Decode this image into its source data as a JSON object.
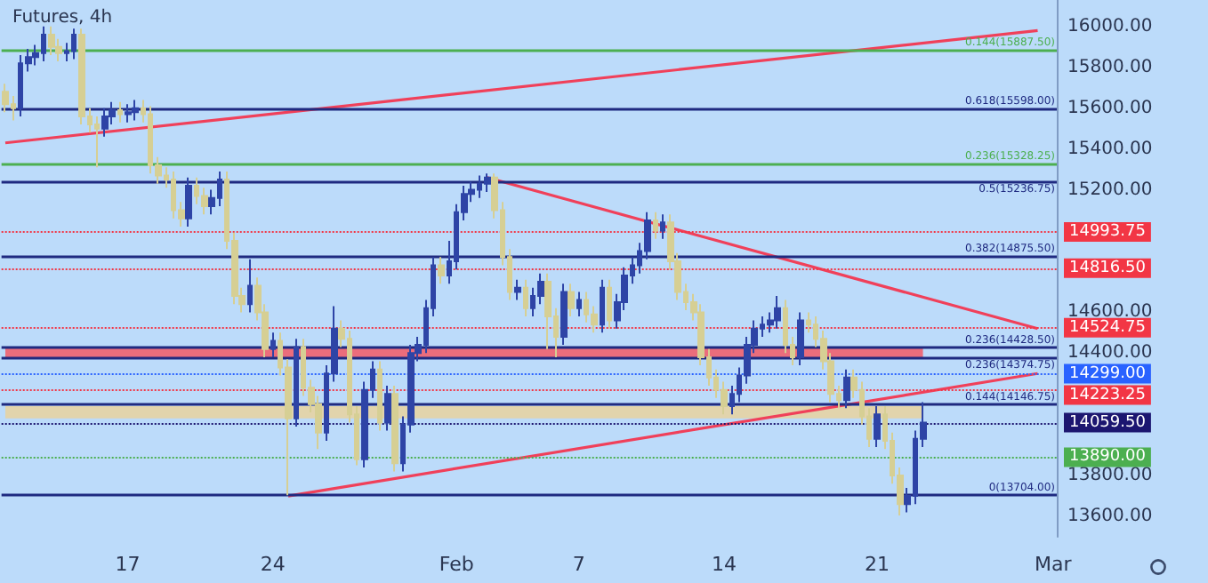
{
  "chart_data": {
    "type": "candlestick",
    "title": "Futures, 4h",
    "categories": [
      null,
      null,
      null,
      null,
      null,
      null,
      null,
      null,
      null,
      null,
      null,
      null,
      null,
      null,
      null,
      null,
      "17",
      null,
      null,
      null,
      null,
      null,
      null,
      null,
      null,
      null,
      null,
      null,
      null,
      null,
      null,
      null,
      null,
      null,
      null,
      "24",
      null,
      null,
      null,
      null,
      null,
      null,
      null,
      null,
      null,
      null,
      null,
      null,
      null,
      null,
      null,
      null,
      null,
      null,
      null,
      null,
      null,
      null,
      null,
      "Feb",
      null,
      null,
      null,
      null,
      null,
      null,
      null,
      null,
      null,
      null,
      null,
      null,
      null,
      null,
      null,
      "7",
      null,
      null,
      null,
      null,
      null,
      null,
      null,
      null,
      null,
      null,
      null,
      null,
      null,
      null,
      null,
      null,
      null,
      null,
      "14",
      null,
      null,
      null,
      null,
      null,
      null,
      null,
      null,
      null,
      null,
      null,
      null,
      null,
      null,
      null,
      null,
      null,
      null,
      null,
      "21",
      null,
      null,
      null,
      null,
      null,
      null,
      null,
      null,
      null,
      null,
      null,
      null,
      null,
      null,
      null,
      null,
      null,
      null,
      null,
      null,
      null,
      null,
      "Mar"
    ],
    "ylim": [
      13500,
      16130
    ],
    "yticks": [
      {
        "value": 13600,
        "label": "13600.00"
      },
      {
        "value": 13800,
        "label": "13800.00"
      },
      {
        "value": 14400,
        "label": "14400.00"
      },
      {
        "value": 14600,
        "label": "14600.00"
      },
      {
        "value": 15200,
        "label": "15200.00"
      },
      {
        "value": 15400,
        "label": "15400.00"
      },
      {
        "value": 15600,
        "label": "15600.00"
      },
      {
        "value": 15800,
        "label": "15800.00"
      },
      {
        "value": 16000,
        "label": "16000.00"
      }
    ],
    "series": [
      {
        "ohlc": [
          [
            15680,
            15720,
            15580,
            15620
          ],
          [
            15620,
            15660,
            15540,
            15600
          ],
          [
            15600,
            15860,
            15560,
            15820
          ],
          [
            15820,
            15890,
            15780,
            15850
          ],
          [
            15850,
            15910,
            15810,
            15870
          ],
          [
            15870,
            16000,
            15830,
            15960
          ],
          [
            15960,
            16000,
            15860,
            15900
          ],
          [
            15900,
            15940,
            15830,
            15870
          ],
          [
            15870,
            15920,
            15830,
            15880
          ],
          [
            15880,
            15990,
            15840,
            15960
          ],
          [
            15960,
            15990,
            15520,
            15560
          ],
          [
            15560,
            15600,
            15480,
            15520
          ],
          [
            15520,
            15560,
            15310,
            15500
          ],
          [
            15500,
            15600,
            15460,
            15560
          ],
          [
            15560,
            15630,
            15520,
            15590
          ],
          [
            15590,
            15630,
            15530,
            15570
          ],
          [
            15570,
            15620,
            15530,
            15580
          ],
          [
            15580,
            15640,
            15540,
            15600
          ],
          [
            15600,
            15640,
            15530,
            15570
          ],
          [
            15570,
            15610,
            15280,
            15320
          ],
          [
            15320,
            15360,
            15230,
            15270
          ],
          [
            15270,
            15310,
            15210,
            15250
          ],
          [
            15250,
            15290,
            15060,
            15100
          ],
          [
            15100,
            15140,
            15020,
            15060
          ],
          [
            15060,
            15260,
            15020,
            15220
          ],
          [
            15220,
            15260,
            15130,
            15170
          ],
          [
            15170,
            15210,
            15080,
            15120
          ],
          [
            15120,
            15200,
            15080,
            15160
          ],
          [
            15160,
            15290,
            15120,
            15250
          ],
          [
            15250,
            15290,
            14910,
            14950
          ],
          [
            14950,
            14990,
            14640,
            14680
          ],
          [
            14680,
            14720,
            14600,
            14640
          ],
          [
            14640,
            14860,
            14600,
            14730
          ],
          [
            14730,
            14770,
            14560,
            14600
          ],
          [
            14600,
            14640,
            14380,
            14420
          ],
          [
            14420,
            14500,
            14380,
            14460
          ],
          [
            14460,
            14500,
            14290,
            14330
          ],
          [
            14330,
            14370,
            13704,
            14080
          ],
          [
            14080,
            14470,
            14040,
            14430
          ],
          [
            14430,
            14470,
            14190,
            14230
          ],
          [
            14230,
            14270,
            14110,
            14150
          ],
          [
            14150,
            14190,
            13930,
            14010
          ],
          [
            14010,
            14340,
            13970,
            14300
          ],
          [
            14300,
            14630,
            14260,
            14520
          ],
          [
            14520,
            14560,
            14430,
            14470
          ],
          [
            14470,
            14510,
            14060,
            14100
          ],
          [
            14100,
            14140,
            13850,
            13880
          ],
          [
            13880,
            14260,
            13840,
            14220
          ],
          [
            14220,
            14360,
            14180,
            14320
          ],
          [
            14320,
            14360,
            14020,
            14060
          ],
          [
            14060,
            14240,
            14020,
            14200
          ],
          [
            14200,
            14240,
            13820,
            13860
          ],
          [
            13860,
            14090,
            13820,
            14050
          ],
          [
            14050,
            14440,
            14010,
            14400
          ],
          [
            14400,
            14480,
            14360,
            14440
          ],
          [
            14440,
            14660,
            14400,
            14620
          ],
          [
            14620,
            14870,
            14580,
            14830
          ],
          [
            14830,
            14870,
            14740,
            14780
          ],
          [
            14780,
            14950,
            14740,
            14850
          ],
          [
            14850,
            15130,
            14810,
            15090
          ],
          [
            15090,
            15220,
            15050,
            15180
          ],
          [
            15180,
            15240,
            15140,
            15200
          ],
          [
            15200,
            15270,
            15160,
            15230
          ],
          [
            15230,
            15280,
            15190,
            15260
          ],
          [
            15260,
            15280,
            15060,
            15100
          ],
          [
            15100,
            15140,
            14830,
            14870
          ],
          [
            14870,
            14910,
            14660,
            14700
          ],
          [
            14700,
            14760,
            14660,
            14720
          ],
          [
            14720,
            14760,
            14580,
            14620
          ],
          [
            14620,
            14720,
            14580,
            14680
          ],
          [
            14680,
            14790,
            14640,
            14750
          ],
          [
            14750,
            14790,
            14420,
            14580
          ],
          [
            14580,
            14620,
            14380,
            14480
          ],
          [
            14480,
            14740,
            14440,
            14700
          ],
          [
            14700,
            14740,
            14580,
            14620
          ],
          [
            14620,
            14700,
            14580,
            14660
          ],
          [
            14660,
            14700,
            14550,
            14590
          ],
          [
            14590,
            14630,
            14500,
            14540
          ],
          [
            14540,
            14760,
            14500,
            14720
          ],
          [
            14720,
            14760,
            14520,
            14560
          ],
          [
            14560,
            14690,
            14520,
            14650
          ],
          [
            14650,
            14820,
            14610,
            14780
          ],
          [
            14780,
            14870,
            14740,
            14830
          ],
          [
            14830,
            14940,
            14790,
            14900
          ],
          [
            14900,
            15090,
            14860,
            15050
          ],
          [
            15050,
            15090,
            14960,
            15000
          ],
          [
            15000,
            15080,
            14960,
            15040
          ],
          [
            15040,
            15080,
            14810,
            14850
          ],
          [
            14850,
            14890,
            14660,
            14700
          ],
          [
            14700,
            14740,
            14610,
            14650
          ],
          [
            14650,
            14690,
            14560,
            14600
          ],
          [
            14600,
            14640,
            14340,
            14380
          ],
          [
            14380,
            14420,
            14240,
            14280
          ],
          [
            14280,
            14320,
            14180,
            14220
          ],
          [
            14220,
            14260,
            14100,
            14140
          ],
          [
            14140,
            14240,
            14100,
            14200
          ],
          [
            14200,
            14330,
            14160,
            14290
          ],
          [
            14290,
            14480,
            14250,
            14440
          ],
          [
            14440,
            14560,
            14400,
            14520
          ],
          [
            14520,
            14580,
            14480,
            14540
          ],
          [
            14540,
            14600,
            14500,
            14560
          ],
          [
            14560,
            14680,
            14520,
            14620
          ],
          [
            14620,
            14660,
            14400,
            14440
          ],
          [
            14440,
            14480,
            14340,
            14380
          ],
          [
            14380,
            14600,
            14340,
            14560
          ],
          [
            14560,
            14600,
            14500,
            14540
          ],
          [
            14540,
            14580,
            14430,
            14470
          ],
          [
            14470,
            14510,
            14320,
            14360
          ],
          [
            14360,
            14400,
            14160,
            14200
          ],
          [
            14200,
            14240,
            14130,
            14170
          ],
          [
            14170,
            14320,
            14130,
            14280
          ],
          [
            14280,
            14320,
            14180,
            14220
          ],
          [
            14220,
            14260,
            14050,
            14090
          ],
          [
            14090,
            14130,
            13940,
            13980
          ],
          [
            13980,
            14140,
            13940,
            14100
          ],
          [
            14100,
            14140,
            13930,
            13970
          ],
          [
            13970,
            14010,
            13760,
            13800
          ],
          [
            13800,
            13840,
            13604,
            13660
          ],
          [
            13660,
            13740,
            13620,
            13700
          ],
          [
            13700,
            14020,
            13660,
            13980
          ],
          [
            13980,
            14160,
            13940,
            14060
          ],
          null,
          null,
          null,
          null,
          null,
          null,
          null,
          null,
          null,
          null,
          null,
          null,
          null,
          null,
          null,
          null,
          null
        ],
        "colors": [
          "#d6cf94",
          "#d6cf94",
          "#2e44a6",
          "#2e44a6",
          "#2e44a6",
          "#2e44a6",
          "#d6cf94",
          "#d6cf94",
          "#2e44a6",
          "#2e44a6",
          "#d6cf94",
          "#d6cf94",
          "#d6cf94",
          "#2e44a6",
          "#2e44a6",
          "#d6cf94",
          "#2e44a6",
          "#2e44a6",
          "#d6cf94",
          "#d6cf94",
          "#d6cf94",
          "#d6cf94",
          "#d6cf94",
          "#d6cf94",
          "#2e44a6",
          "#d6cf94",
          "#d6cf94",
          "#2e44a6",
          "#2e44a6",
          "#d6cf94",
          "#d6cf94",
          "#d6cf94",
          "#2e44a6",
          "#d6cf94",
          "#d6cf94",
          "#2e44a6",
          "#d6cf94",
          "#d6cf94",
          "#2e44a6",
          "#d6cf94",
          "#d6cf94",
          "#d6cf94",
          "#2e44a6",
          "#2e44a6",
          "#d6cf94",
          "#d6cf94",
          "#d6cf94",
          "#2e44a6",
          "#2e44a6",
          "#d6cf94",
          "#2e44a6",
          "#d6cf94",
          "#2e44a6",
          "#2e44a6",
          "#2e44a6",
          "#2e44a6",
          "#2e44a6",
          "#d6cf94",
          "#2e44a6",
          "#2e44a6",
          "#2e44a6",
          "#2e44a6",
          "#2e44a6",
          "#2e44a6",
          "#d6cf94",
          "#d6cf94",
          "#d6cf94",
          "#2e44a6",
          "#d6cf94",
          "#2e44a6",
          "#2e44a6",
          "#d6cf94",
          "#d6cf94",
          "#2e44a6",
          "#d6cf94",
          "#2e44a6",
          "#d6cf94",
          "#d6cf94",
          "#2e44a6",
          "#d6cf94",
          "#2e44a6",
          "#2e44a6",
          "#2e44a6",
          "#2e44a6",
          "#2e44a6",
          "#d6cf94",
          "#2e44a6",
          "#d6cf94",
          "#d6cf94",
          "#d6cf94",
          "#d6cf94",
          "#d6cf94",
          "#d6cf94",
          "#d6cf94",
          "#d6cf94",
          "#2e44a6",
          "#2e44a6",
          "#2e44a6",
          "#2e44a6",
          "#2e44a6",
          "#2e44a6",
          "#2e44a6",
          "#d6cf94",
          "#d6cf94",
          "#2e44a6",
          "#d6cf94",
          "#d6cf94",
          "#d6cf94",
          "#d6cf94",
          "#d6cf94",
          "#2e44a6",
          "#d6cf94",
          "#d6cf94",
          "#d6cf94",
          "#2e44a6",
          "#d6cf94",
          "#d6cf94",
          "#d6cf94",
          "#2e44a6",
          "#2e44a6",
          "#2e44a6",
          null,
          null,
          null,
          null,
          null,
          null,
          null,
          null,
          null,
          null,
          null,
          null,
          null,
          null,
          null,
          null,
          null
        ]
      },
      {
        "type": "line",
        "color": "#f0405a",
        "values": [
          15430,
          null,
          null,
          null,
          null,
          null,
          null,
          null,
          null,
          null,
          null,
          null,
          null,
          null,
          null,
          null,
          null,
          null,
          null,
          null,
          null,
          null,
          null,
          null,
          null,
          null,
          null,
          null,
          null,
          null,
          null,
          null,
          null,
          null,
          null,
          null,
          null,
          null,
          null,
          null,
          null,
          null,
          null,
          null,
          null,
          null,
          null,
          null,
          null,
          null,
          null,
          null,
          null,
          null,
          null,
          null,
          null,
          null,
          null,
          null,
          null,
          null,
          null,
          null,
          null,
          null,
          null,
          null,
          null,
          null,
          null,
          null,
          null,
          null,
          null,
          null,
          null,
          null,
          null,
          null,
          null,
          null,
          null,
          null,
          null,
          null,
          null,
          null,
          null,
          null,
          null,
          null,
          null,
          null,
          null,
          null,
          null,
          null,
          null,
          null,
          null,
          null,
          null,
          null,
          null,
          null,
          null,
          null,
          null,
          null,
          null,
          null,
          null,
          null,
          null,
          null,
          null,
          null,
          null,
          null,
          null,
          null,
          null,
          null,
          null,
          null,
          null,
          null,
          null,
          null,
          null,
          null,
          null,
          null,
          null,
          15980,
          null,
          null
        ]
      },
      {
        "type": "line",
        "color": "#f0405a",
        "values": [
          null,
          null,
          null,
          null,
          null,
          null,
          null,
          null,
          null,
          null,
          null,
          null,
          null,
          null,
          null,
          null,
          null,
          null,
          null,
          null,
          null,
          null,
          null,
          null,
          null,
          null,
          null,
          null,
          null,
          null,
          null,
          null,
          null,
          null,
          null,
          null,
          null,
          null,
          null,
          null,
          null,
          null,
          null,
          null,
          null,
          null,
          null,
          null,
          null,
          null,
          null,
          null,
          null,
          null,
          null,
          null,
          null,
          null,
          null,
          null,
          null,
          null,
          null,
          15260,
          null,
          null,
          null,
          null,
          null,
          null,
          null,
          null,
          null,
          null,
          null,
          null,
          null,
          null,
          null,
          null,
          null,
          null,
          null,
          null,
          null,
          null,
          null,
          null,
          null,
          null,
          null,
          null,
          null,
          null,
          null,
          null,
          null,
          null,
          null,
          null,
          null,
          null,
          null,
          null,
          null,
          null,
          null,
          null,
          null,
          null,
          null,
          null,
          null,
          null,
          null,
          null,
          null,
          null,
          null,
          null,
          null,
          null,
          null,
          null,
          null,
          null,
          null,
          null,
          null,
          null,
          null,
          null,
          null,
          null,
          null,
          14520,
          null,
          null
        ]
      },
      {
        "type": "line",
        "color": "#f0405a",
        "values": [
          null,
          null,
          null,
          null,
          null,
          null,
          null,
          null,
          null,
          null,
          null,
          null,
          null,
          null,
          null,
          null,
          null,
          null,
          null,
          null,
          null,
          null,
          null,
          null,
          null,
          null,
          null,
          null,
          null,
          null,
          null,
          null,
          null,
          null,
          null,
          null,
          null,
          13700,
          null,
          null,
          null,
          null,
          null,
          null,
          null,
          null,
          null,
          null,
          null,
          null,
          null,
          null,
          null,
          null,
          null,
          null,
          null,
          null,
          null,
          null,
          null,
          null,
          null,
          null,
          null,
          null,
          null,
          null,
          null,
          null,
          null,
          null,
          null,
          null,
          null,
          null,
          null,
          null,
          null,
          null,
          null,
          null,
          null,
          null,
          null,
          null,
          null,
          null,
          null,
          null,
          null,
          null,
          null,
          null,
          null,
          null,
          null,
          null,
          null,
          null,
          null,
          null,
          null,
          null,
          null,
          null,
          null,
          null,
          null,
          null,
          null,
          null,
          null,
          null,
          null,
          null,
          null,
          null,
          null,
          null,
          null,
          null,
          null,
          null,
          null,
          null,
          null,
          null,
          null,
          null,
          null,
          null,
          null,
          null,
          null,
          14300,
          null,
          null
        ]
      }
    ],
    "ref_lines": [
      {
        "axis": "y",
        "value": 15887.5,
        "label": "0.144(15887.50)",
        "color": "#4caf50",
        "line_style": "solid"
      },
      {
        "axis": "y",
        "value": 15598,
        "label": "0.618(15598.00)",
        "color": "#1f2a80",
        "line_style": "solid"
      },
      {
        "axis": "y",
        "value": 15328.25,
        "label": "0.236(15328.25)",
        "color": "#4caf50",
        "line_style": "solid"
      },
      {
        "axis": "y",
        "value": 15236.75,
        "label": "0.5(15236.75)",
        "color": "#1f2a80",
        "line_style": "solid"
      },
      {
        "axis": "y",
        "value": 14875.5,
        "label": "0.382(14875.50)",
        "color": "#1f2a80",
        "line_style": "solid"
      },
      {
        "axis": "y",
        "value": 14428.5,
        "label": "0.236(14428.50)",
        "color": "#1f2a80",
        "line_style": "solid"
      },
      {
        "axis": "y",
        "value": 14374.75,
        "label": "0.236(14374.75)",
        "color": "#1f2a80",
        "line_style": "solid"
      },
      {
        "axis": "y",
        "value": 14146.75,
        "label": "0.144(14146.75)",
        "color": "#1f2a80",
        "line_style": "solid"
      },
      {
        "axis": "y",
        "value": 13704,
        "label": "0(13704.00)",
        "color": "#1f2a80",
        "line_style": "solid"
      },
      {
        "axis": "y",
        "value": 14993.75,
        "label": "14993.75",
        "color": "#f23645",
        "line_style": "dotted"
      },
      {
        "axis": "y",
        "value": 14816.5,
        "label": "14816.50",
        "color": "#f23645",
        "line_style": "dotted"
      },
      {
        "axis": "y",
        "value": 14524.75,
        "label": "14524.75",
        "color": "#f23645",
        "line_style": "dotted"
      },
      {
        "axis": "y",
        "value": 14299,
        "label": "14299.00",
        "color": "#2962ff",
        "line_style": "dotted"
      },
      {
        "axis": "y",
        "value": 14223.25,
        "label": "14223.25",
        "color": "#f23645",
        "line_style": "dotted"
      },
      {
        "axis": "y",
        "value": 14059.5,
        "label": "14059.50",
        "color": "#1c1670",
        "line_style": "dotted"
      },
      {
        "axis": "y",
        "value": 13890,
        "label": "13890.00",
        "color": "#4caf50",
        "line_style": "dotted"
      }
    ],
    "bands": [
      {
        "axis": "y",
        "from": 14374.75,
        "to": 14428.5,
        "color": "#f0606e"
      },
      {
        "axis": "y",
        "from": 14080,
        "to": 14140,
        "color": "#e6d3a3"
      }
    ]
  }
}
